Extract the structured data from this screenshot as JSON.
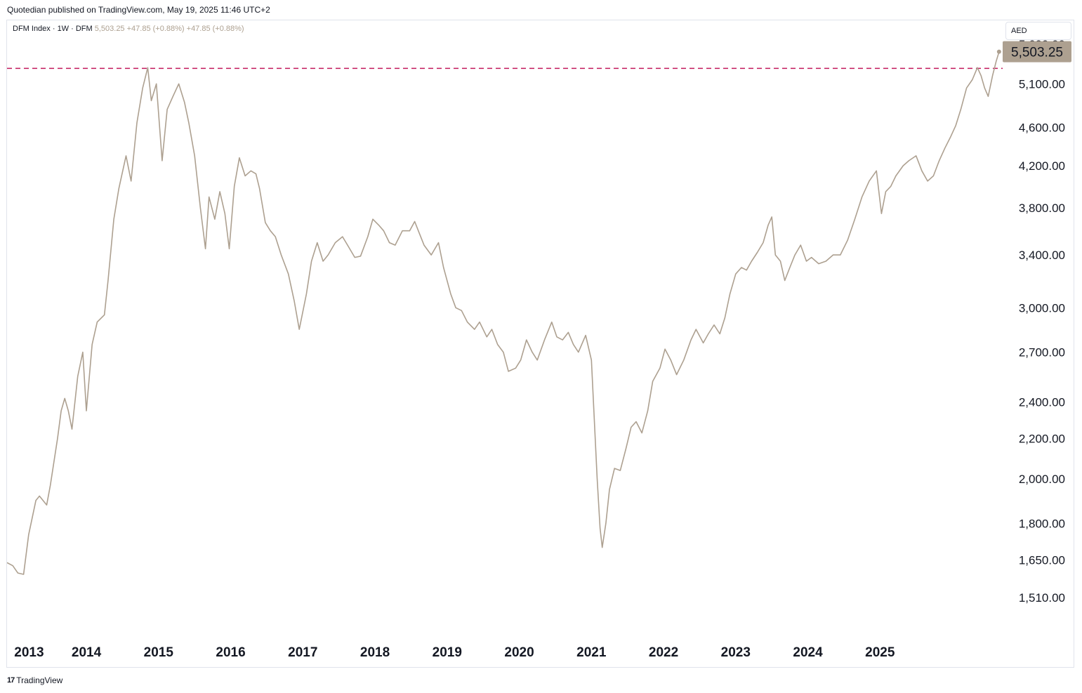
{
  "header": {
    "published_text": "Quotedian published on TradingView.com, May 19, 2025 11:46 UTC+2"
  },
  "legend": {
    "symbol": "DFM Index · 1W · DFM",
    "last": "5,503.25",
    "change_1": "+47.85 (+0.88%)",
    "change_2": "+47.85 (+0.88%)"
  },
  "currency_button": "AED",
  "footer": {
    "brand": "TradingView",
    "logo_glyph": "17"
  },
  "colors": {
    "series": "#ada090",
    "hline": "#c2185b",
    "label_bg": "#ada090",
    "axis_text": "#131722"
  },
  "chart_data": {
    "type": "line",
    "title": "DFM Index · 1W · DFM",
    "xlabel": "",
    "ylabel": "",
    "scale": "log",
    "grid": false,
    "xlim": [
      2012.9,
      2026.7
    ],
    "ylim": [
      1380,
      5820
    ],
    "x_ticks": [
      "2013",
      "2014",
      "2015",
      "2016",
      "2017",
      "2018",
      "2019",
      "2020",
      "2021",
      "2022",
      "2023",
      "2024",
      "2025"
    ],
    "y_ticks": [
      "1,510.00",
      "1,650.00",
      "1,800.00",
      "2,000.00",
      "2,200.00",
      "2,400.00",
      "2,700.00",
      "3,000.00",
      "3,400.00",
      "3,800.00",
      "4,200.00",
      "4,600.00",
      "5,100.00",
      "5,600.00"
    ],
    "horizontal_line": 5290,
    "last_value_label": "5,503.25",
    "series": [
      {
        "points": [
          [
            2012.9,
            1640
          ],
          [
            2012.98,
            1628
          ],
          [
            2013.05,
            1600
          ],
          [
            2013.13,
            1595
          ],
          [
            2013.2,
            1752
          ],
          [
            2013.3,
            1900
          ],
          [
            2013.35,
            1920
          ],
          [
            2013.45,
            1880
          ],
          [
            2013.5,
            1970
          ],
          [
            2013.6,
            2200
          ],
          [
            2013.65,
            2350
          ],
          [
            2013.7,
            2420
          ],
          [
            2013.75,
            2350
          ],
          [
            2013.8,
            2250
          ],
          [
            2013.88,
            2550
          ],
          [
            2013.95,
            2700
          ],
          [
            2014.0,
            2350
          ],
          [
            2014.08,
            2750
          ],
          [
            2014.15,
            2900
          ],
          [
            2014.25,
            2950
          ],
          [
            2014.3,
            3200
          ],
          [
            2014.38,
            3700
          ],
          [
            2014.45,
            3980
          ],
          [
            2014.55,
            4300
          ],
          [
            2014.62,
            4050
          ],
          [
            2014.7,
            4650
          ],
          [
            2014.78,
            5050
          ],
          [
            2014.85,
            5300
          ],
          [
            2014.9,
            4900
          ],
          [
            2014.97,
            5100
          ],
          [
            2015.05,
            4250
          ],
          [
            2015.12,
            4800
          ],
          [
            2015.2,
            4950
          ],
          [
            2015.28,
            5100
          ],
          [
            2015.36,
            4880
          ],
          [
            2015.42,
            4650
          ],
          [
            2015.5,
            4300
          ],
          [
            2015.58,
            3800
          ],
          [
            2015.65,
            3450
          ],
          [
            2015.7,
            3900
          ],
          [
            2015.78,
            3700
          ],
          [
            2015.85,
            3950
          ],
          [
            2015.92,
            3750
          ],
          [
            2015.98,
            3450
          ],
          [
            2016.05,
            4000
          ],
          [
            2016.12,
            4280
          ],
          [
            2016.2,
            4100
          ],
          [
            2016.28,
            4150
          ],
          [
            2016.35,
            4120
          ],
          [
            2016.4,
            3980
          ],
          [
            2016.48,
            3670
          ],
          [
            2016.55,
            3600
          ],
          [
            2016.62,
            3550
          ],
          [
            2016.7,
            3400
          ],
          [
            2016.8,
            3250
          ],
          [
            2016.88,
            3050
          ],
          [
            2016.95,
            2850
          ],
          [
            2017.05,
            3100
          ],
          [
            2017.12,
            3350
          ],
          [
            2017.2,
            3500
          ],
          [
            2017.28,
            3350
          ],
          [
            2017.35,
            3400
          ],
          [
            2017.45,
            3500
          ],
          [
            2017.55,
            3550
          ],
          [
            2017.62,
            3480
          ],
          [
            2017.72,
            3380
          ],
          [
            2017.8,
            3390
          ],
          [
            2017.9,
            3550
          ],
          [
            2017.97,
            3700
          ],
          [
            2018.05,
            3650
          ],
          [
            2018.12,
            3600
          ],
          [
            2018.2,
            3500
          ],
          [
            2018.28,
            3480
          ],
          [
            2018.38,
            3600
          ],
          [
            2018.48,
            3600
          ],
          [
            2018.55,
            3680
          ],
          [
            2018.62,
            3570
          ],
          [
            2018.68,
            3480
          ],
          [
            2018.78,
            3400
          ],
          [
            2018.88,
            3500
          ],
          [
            2018.95,
            3300
          ],
          [
            2019.05,
            3100
          ],
          [
            2019.12,
            3000
          ],
          [
            2019.2,
            2980
          ],
          [
            2019.28,
            2900
          ],
          [
            2019.38,
            2850
          ],
          [
            2019.45,
            2900
          ],
          [
            2019.55,
            2800
          ],
          [
            2019.62,
            2850
          ],
          [
            2019.7,
            2750
          ],
          [
            2019.78,
            2700
          ],
          [
            2019.85,
            2580
          ],
          [
            2019.95,
            2600
          ],
          [
            2020.02,
            2650
          ],
          [
            2020.1,
            2780
          ],
          [
            2020.18,
            2700
          ],
          [
            2020.25,
            2650
          ],
          [
            2020.35,
            2780
          ],
          [
            2020.45,
            2900
          ],
          [
            2020.52,
            2800
          ],
          [
            2020.6,
            2780
          ],
          [
            2020.68,
            2830
          ],
          [
            2020.75,
            2750
          ],
          [
            2020.82,
            2700
          ],
          [
            2020.92,
            2810
          ],
          [
            2021.0,
            2650
          ],
          [
            2021.08,
            2000
          ],
          [
            2021.12,
            1780
          ],
          [
            2021.15,
            1700
          ],
          [
            2021.2,
            1800
          ],
          [
            2021.25,
            1950
          ],
          [
            2021.32,
            2050
          ],
          [
            2021.4,
            2040
          ],
          [
            2021.48,
            2150
          ],
          [
            2021.55,
            2260
          ],
          [
            2021.62,
            2290
          ],
          [
            2021.7,
            2230
          ],
          [
            2021.78,
            2350
          ],
          [
            2021.85,
            2520
          ],
          [
            2021.95,
            2600
          ],
          [
            2022.02,
            2720
          ],
          [
            2022.1,
            2650
          ],
          [
            2022.18,
            2560
          ],
          [
            2022.28,
            2650
          ],
          [
            2022.38,
            2780
          ],
          [
            2022.45,
            2850
          ],
          [
            2022.55,
            2760
          ],
          [
            2022.62,
            2820
          ],
          [
            2022.7,
            2880
          ],
          [
            2022.78,
            2820
          ],
          [
            2022.85,
            2930
          ],
          [
            2022.92,
            3100
          ],
          [
            2023.0,
            3250
          ],
          [
            2023.08,
            3300
          ],
          [
            2023.15,
            3280
          ],
          [
            2023.22,
            3350
          ],
          [
            2023.3,
            3420
          ],
          [
            2023.38,
            3500
          ],
          [
            2023.45,
            3650
          ],
          [
            2023.5,
            3720
          ],
          [
            2023.55,
            3400
          ],
          [
            2023.62,
            3350
          ],
          [
            2023.68,
            3200
          ],
          [
            2023.75,
            3300
          ],
          [
            2023.82,
            3400
          ],
          [
            2023.9,
            3480
          ],
          [
            2023.98,
            3350
          ],
          [
            2024.05,
            3380
          ],
          [
            2024.15,
            3330
          ],
          [
            2024.25,
            3350
          ],
          [
            2024.35,
            3400
          ],
          [
            2024.45,
            3400
          ],
          [
            2024.55,
            3520
          ],
          [
            2024.65,
            3700
          ],
          [
            2024.75,
            3900
          ],
          [
            2024.85,
            4050
          ],
          [
            2024.95,
            4150
          ],
          [
            2025.02,
            3750
          ],
          [
            2025.08,
            3950
          ],
          [
            2025.15,
            4000
          ],
          [
            2025.22,
            4100
          ],
          [
            2025.32,
            4200
          ],
          [
            2025.4,
            4250
          ],
          [
            2025.5,
            4300
          ],
          [
            2025.58,
            4150
          ],
          [
            2025.66,
            4050
          ],
          [
            2025.74,
            4100
          ],
          [
            2025.82,
            4250
          ],
          [
            2025.9,
            4380
          ],
          [
            2025.98,
            4500
          ],
          [
            2026.05,
            4620
          ],
          [
            2026.12,
            4800
          ],
          [
            2026.2,
            5050
          ],
          [
            2026.28,
            5150
          ],
          [
            2026.35,
            5300
          ],
          [
            2026.4,
            5200
          ],
          [
            2026.45,
            5050
          ],
          [
            2026.5,
            4950
          ],
          [
            2026.56,
            5200
          ],
          [
            2026.61,
            5380
          ],
          [
            2026.65,
            5503
          ]
        ]
      }
    ]
  }
}
